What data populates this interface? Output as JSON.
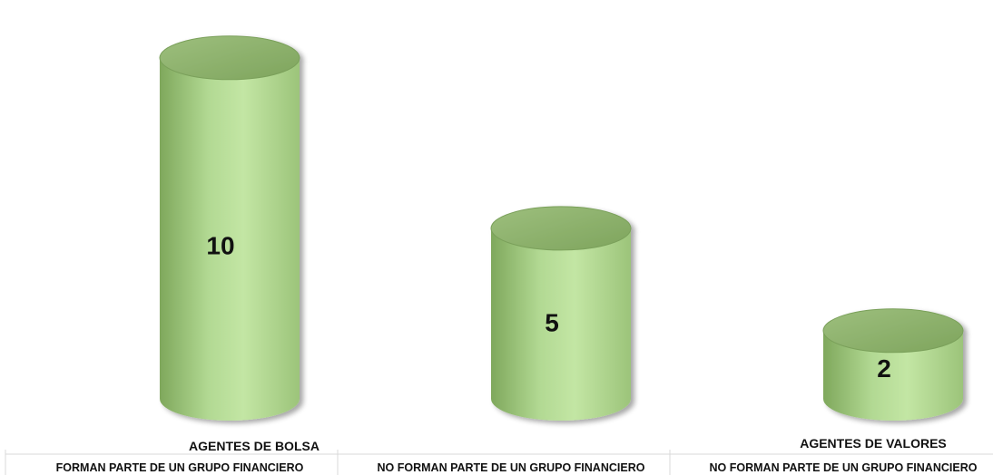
{
  "chart_data": {
    "type": "bar",
    "style": "3d-cylinder",
    "categories": [
      "FORMAN PARTE DE UN GRUPO FINANCIERO",
      "NO FORMAN PARTE DE UN GRUPO FINANCIERO",
      "NO FORMAN PARTE DE UN GRUPO FINANCIERO"
    ],
    "groups": [
      {
        "label": "AGENTES DE BOLSA",
        "categories": [
          0,
          1
        ]
      },
      {
        "label": "AGENTES DE VALORES",
        "categories": [
          2
        ]
      }
    ],
    "values": [
      10,
      5,
      2
    ],
    "data_labels": [
      "10",
      "5",
      "2"
    ],
    "ylim": [
      0,
      10.5
    ],
    "grid": false,
    "legend": "none",
    "colors": {
      "bar_body_dark": "#7fa85c",
      "bar_body_light": "#c3e6a4",
      "bar_top": "#8cb16b",
      "bar_top_edge": "#7aa05a",
      "axis": "#d9d9d9",
      "text": "#111111"
    }
  }
}
